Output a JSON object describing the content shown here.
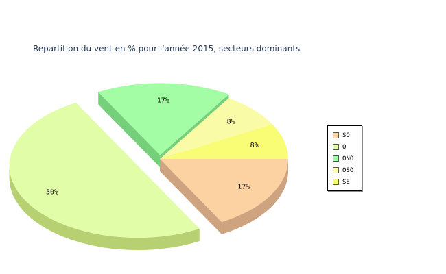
{
  "chart_data": {
    "type": "pie",
    "style": "3d-exploded",
    "title": "Repartition du vent en % pour l'année 2015, secteurs dominants",
    "categories": [
      "SO",
      "O",
      "ONO",
      "OSO",
      "SE"
    ],
    "values": [
      17,
      50,
      17,
      8,
      8
    ],
    "labels": [
      "17%",
      "50%",
      "17%",
      "8%",
      "8%"
    ],
    "exploded": [
      "O",
      "ONO",
      "SO"
    ],
    "colors": [
      "#fdd2a3",
      "#e2fda8",
      "#a3fda5",
      "#fafba7",
      "#f9fc75"
    ],
    "side_colors": [
      "#cea37f",
      "#b6d072",
      "#76cf7a",
      "#c9cb83",
      "#c9cd55"
    ],
    "legend_position": "right"
  }
}
